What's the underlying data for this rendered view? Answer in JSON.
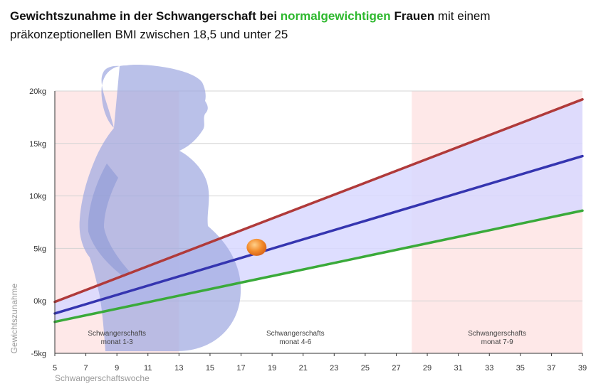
{
  "title": {
    "part1": "Gewichtszunahme in der Schwangerschaft bei",
    "highlight": "normalgewichtigen",
    "part2": "Frauen",
    "part3": "mit einem",
    "line2": "präkonzeptionellen BMI zwischen 18,5 und unter 25"
  },
  "colors": {
    "upper": "#b03a3a",
    "middle": "#3535b0",
    "lower": "#3aaa3a",
    "highlight": "#2eb82e",
    "range_fill": "#d8d8ff",
    "band_fill": "#fde0e0",
    "silhouette": "#9fa9e0",
    "marker": "#f28a2a"
  },
  "chart_data": {
    "type": "line",
    "xlabel": "Schwangerschaftswoche",
    "ylabel": "Gewichtszunahme",
    "xlim": [
      5,
      39
    ],
    "ylim": [
      -5,
      20
    ],
    "x_ticks": [
      "5",
      "7",
      "9",
      "11",
      "13",
      "15",
      "17",
      "19",
      "21",
      "23",
      "25",
      "27",
      "29",
      "31",
      "33",
      "35",
      "37",
      "39"
    ],
    "y_ticks": [
      "-5kg",
      "0kg",
      "5kg",
      "10kg",
      "15kg",
      "20kg"
    ],
    "y_tick_values": [
      -5,
      0,
      5,
      10,
      15,
      20
    ],
    "series": [
      {
        "key": "upper",
        "x": [
          5,
          39
        ],
        "y": [
          -0.1,
          19.2
        ]
      },
      {
        "key": "middle",
        "x": [
          5,
          39
        ],
        "y": [
          -1.2,
          13.8
        ]
      },
      {
        "key": "lower",
        "x": [
          5,
          39
        ],
        "y": [
          -2.0,
          8.6
        ]
      }
    ],
    "bands": [
      {
        "from": 5,
        "to": 13,
        "label1": "Schwangerschafts",
        "label2": "monat 1-3"
      },
      {
        "from": 13,
        "to": 28,
        "label1": "Schwangerschafts",
        "label2": "monat 4-6"
      },
      {
        "from": 28,
        "to": 39,
        "label1": "Schwangerschafts",
        "label2": "monat 7-9"
      }
    ],
    "marker": {
      "x": 18,
      "y": 5.1
    },
    "grid": true
  }
}
